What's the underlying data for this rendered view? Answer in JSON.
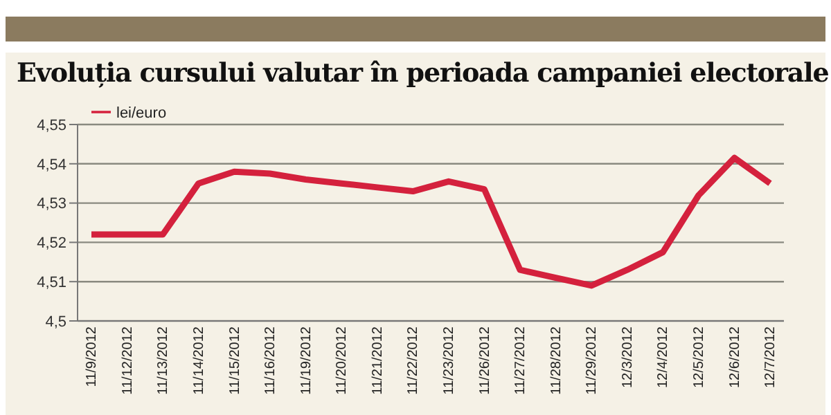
{
  "chart_data": {
    "type": "line",
    "title": "Evoluția cursului valutar în perioada campaniei electorale",
    "categories": [
      "11/9/2012",
      "11/12/2012",
      "11/13/2012",
      "11/14/2012",
      "11/15/2012",
      "11/16/2012",
      "11/19/2012",
      "11/20/2012",
      "11/21/2012",
      "11/22/2012",
      "11/23/2012",
      "11/26/2012",
      "11/27/2012",
      "11/28/2012",
      "11/29/2012",
      "12/3/2012",
      "12/4/2012",
      "12/5/2012",
      "12/6/2012",
      "12/7/2012"
    ],
    "series": [
      {
        "name": "lei/euro",
        "color": "#d4213d",
        "values": [
          4.522,
          4.522,
          4.522,
          4.535,
          4.538,
          4.5375,
          4.536,
          4.535,
          4.534,
          4.533,
          4.5355,
          4.5335,
          4.513,
          4.511,
          4.509,
          4.513,
          4.5175,
          4.532,
          4.5415,
          4.535
        ]
      }
    ],
    "ylim": [
      4.5,
      4.55
    ],
    "yticks": [
      {
        "value": 4.5,
        "label": "4,5"
      },
      {
        "value": 4.51,
        "label": "4,51"
      },
      {
        "value": 4.52,
        "label": "4,52"
      },
      {
        "value": 4.53,
        "label": "4,53"
      },
      {
        "value": 4.54,
        "label": "4,54"
      },
      {
        "value": 4.55,
        "label": "4,55"
      }
    ],
    "grid": "y",
    "legend": "top left",
    "marker": "none",
    "line_style": "solid"
  }
}
